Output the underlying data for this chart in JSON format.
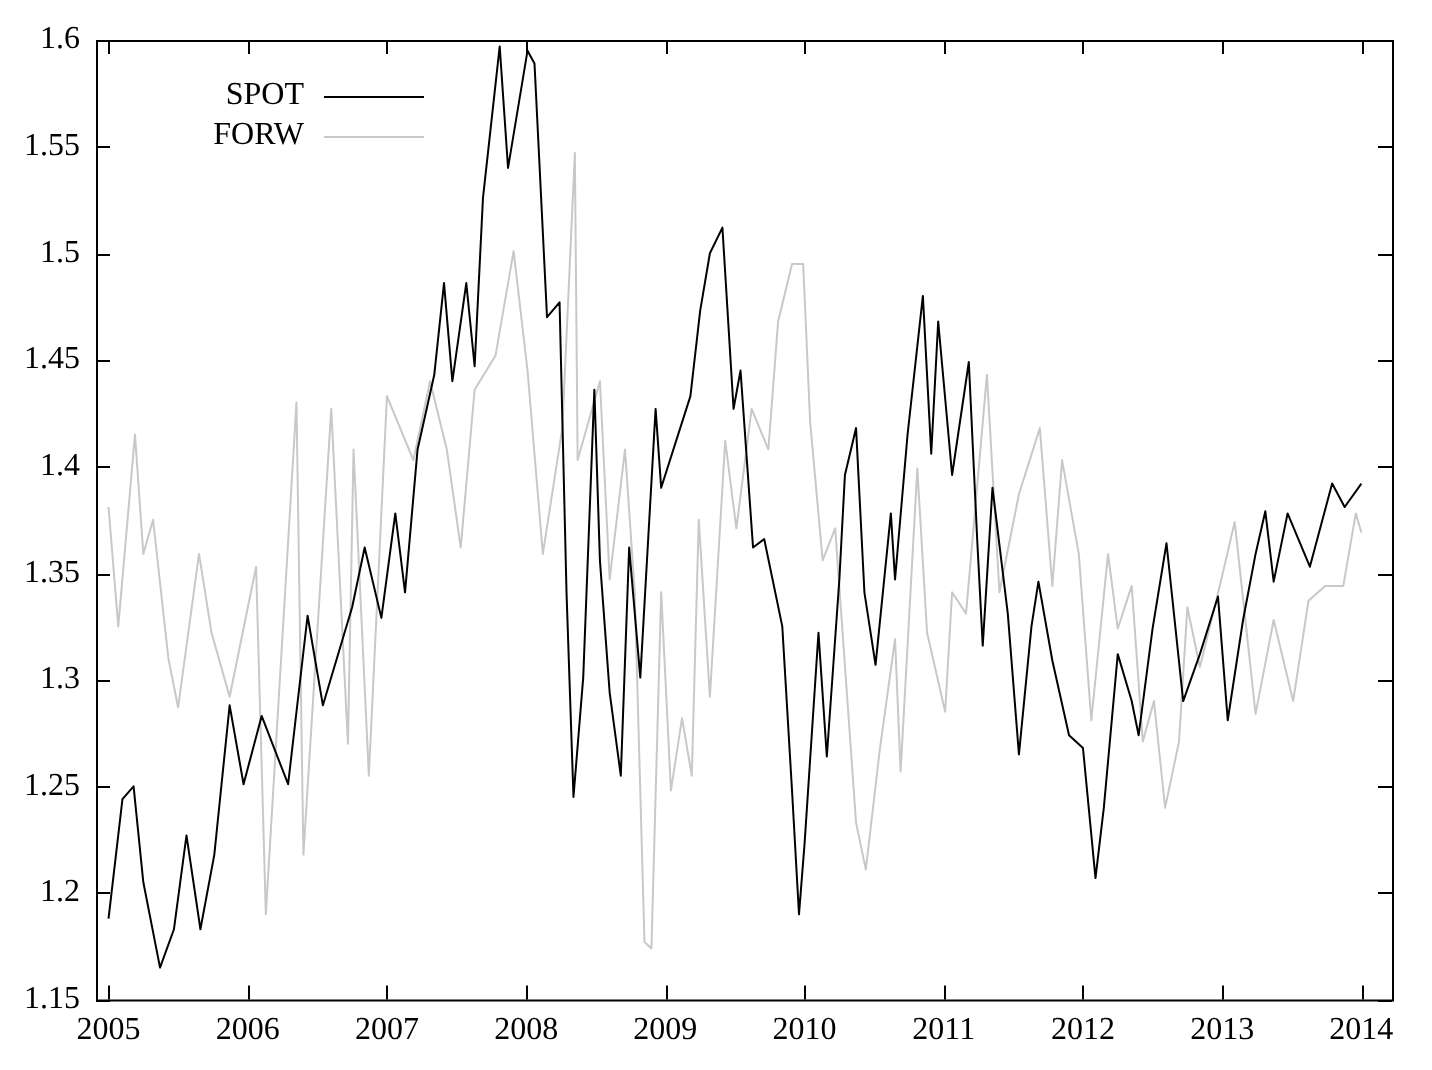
{
  "chart_data": {
    "type": "line",
    "xlim": [
      2004.91,
      2014.22
    ],
    "xticks": [
      2005,
      2006,
      2007,
      2008,
      2009,
      2010,
      2011,
      2012,
      2013,
      2014
    ],
    "ylim": [
      1.15,
      1.6
    ],
    "yticks": [
      1.15,
      1.2,
      1.25,
      1.3,
      1.35,
      1.4,
      1.45,
      1.5,
      1.55,
      1.6
    ],
    "legend": "top left",
    "marker": "none",
    "line_style": "solid",
    "series": [
      {
        "name": "SPOT",
        "color": "#000000",
        "x": [
          2005.0,
          2005.1,
          2005.18,
          2005.25,
          2005.37,
          2005.47,
          2005.56,
          2005.66,
          2005.76,
          2005.87,
          2005.97,
          2006.1,
          2006.29,
          2006.43,
          2006.54,
          2006.75,
          2006.84,
          2006.96,
          2007.06,
          2007.13,
          2007.22,
          2007.34,
          2007.41,
          2007.47,
          2007.57,
          2007.63,
          2007.69,
          2007.81,
          2007.87,
          2008.01,
          2008.06,
          2008.15,
          2008.24,
          2008.29,
          2008.34,
          2008.41,
          2008.49,
          2008.53,
          2008.6,
          2008.68,
          2008.74,
          2008.82,
          2008.93,
          2008.97,
          2009.18,
          2009.25,
          2009.32,
          2009.41,
          2009.49,
          2009.54,
          2009.63,
          2009.71,
          2009.84,
          2009.91,
          2009.96,
          2010.0,
          2010.1,
          2010.16,
          2010.25,
          2010.29,
          2010.37,
          2010.43,
          2010.51,
          2010.62,
          2010.65,
          2010.74,
          2010.85,
          2010.91,
          2010.96,
          2011.06,
          2011.18,
          2011.24,
          2011.28,
          2011.35,
          2011.46,
          2011.54,
          2011.63,
          2011.68,
          2011.78,
          2011.9,
          2012.0,
          2012.09,
          2012.15,
          2012.25,
          2012.35,
          2012.4,
          2012.5,
          2012.6,
          2012.72,
          2012.84,
          2012.97,
          2013.04,
          2013.15,
          2013.24,
          2013.31,
          2013.37,
          2013.47,
          2013.63,
          2013.79,
          2013.88,
          2014.0
        ],
        "values": [
          1.188,
          1.244,
          1.25,
          1.205,
          1.165,
          1.183,
          1.227,
          1.183,
          1.218,
          1.288,
          1.251,
          1.283,
          1.251,
          1.33,
          1.288,
          1.334,
          1.362,
          1.329,
          1.378,
          1.341,
          1.408,
          1.443,
          1.486,
          1.44,
          1.486,
          1.447,
          1.526,
          1.597,
          1.54,
          1.595,
          1.589,
          1.47,
          1.477,
          1.341,
          1.245,
          1.301,
          1.436,
          1.356,
          1.294,
          1.255,
          1.362,
          1.301,
          1.427,
          1.39,
          1.433,
          1.473,
          1.5,
          1.512,
          1.427,
          1.445,
          1.362,
          1.366,
          1.325,
          1.248,
          1.19,
          1.223,
          1.322,
          1.264,
          1.347,
          1.396,
          1.418,
          1.341,
          1.307,
          1.378,
          1.347,
          1.415,
          1.48,
          1.406,
          1.468,
          1.396,
          1.449,
          1.366,
          1.316,
          1.39,
          1.331,
          1.265,
          1.325,
          1.346,
          1.309,
          1.274,
          1.268,
          1.207,
          1.24,
          1.312,
          1.29,
          1.274,
          1.324,
          1.364,
          1.29,
          1.312,
          1.339,
          1.281,
          1.328,
          1.359,
          1.379,
          1.346,
          1.378,
          1.353,
          1.392,
          1.381,
          1.392
        ]
      },
      {
        "name": "FORW",
        "color": "#c8c8c8",
        "x": [
          2005.0,
          2005.07,
          2005.19,
          2005.25,
          2005.32,
          2005.43,
          2005.5,
          2005.65,
          2005.74,
          2005.87,
          2006.06,
          2006.13,
          2006.35,
          2006.4,
          2006.6,
          2006.72,
          2006.76,
          2006.87,
          2007.0,
          2007.19,
          2007.31,
          2007.43,
          2007.53,
          2007.63,
          2007.78,
          2007.91,
          2008.01,
          2008.12,
          2008.26,
          2008.35,
          2008.37,
          2008.53,
          2008.6,
          2008.71,
          2008.78,
          2008.85,
          2008.9,
          2008.97,
          2009.04,
          2009.12,
          2009.19,
          2009.24,
          2009.32,
          2009.43,
          2009.51,
          2009.62,
          2009.74,
          2009.81,
          2009.91,
          2009.99,
          2010.04,
          2010.13,
          2010.22,
          2010.37,
          2010.44,
          2010.54,
          2010.65,
          2010.69,
          2010.81,
          2010.88,
          2011.01,
          2011.06,
          2011.16,
          2011.31,
          2011.4,
          2011.54,
          2011.69,
          2011.78,
          2011.85,
          2011.97,
          2012.06,
          2012.18,
          2012.25,
          2012.35,
          2012.43,
          2012.51,
          2012.59,
          2012.69,
          2012.75,
          2012.84,
          2012.99,
          2013.09,
          2013.24,
          2013.37,
          2013.51,
          2013.62,
          2013.74,
          2013.87,
          2013.96,
          2014.0
        ],
        "values": [
          1.381,
          1.325,
          1.415,
          1.359,
          1.375,
          1.31,
          1.287,
          1.359,
          1.322,
          1.292,
          1.353,
          1.19,
          1.43,
          1.218,
          1.427,
          1.27,
          1.408,
          1.255,
          1.433,
          1.403,
          1.44,
          1.408,
          1.362,
          1.436,
          1.452,
          1.501,
          1.445,
          1.359,
          1.418,
          1.547,
          1.403,
          1.44,
          1.347,
          1.408,
          1.341,
          1.177,
          1.174,
          1.341,
          1.248,
          1.282,
          1.255,
          1.375,
          1.292,
          1.412,
          1.371,
          1.427,
          1.408,
          1.468,
          1.495,
          1.495,
          1.421,
          1.356,
          1.371,
          1.233,
          1.211,
          1.267,
          1.319,
          1.257,
          1.399,
          1.322,
          1.285,
          1.341,
          1.331,
          1.443,
          1.341,
          1.387,
          1.418,
          1.344,
          1.403,
          1.359,
          1.281,
          1.359,
          1.324,
          1.344,
          1.271,
          1.29,
          1.24,
          1.271,
          1.334,
          1.306,
          1.346,
          1.374,
          1.284,
          1.328,
          1.29,
          1.337,
          1.344,
          1.344,
          1.378,
          1.369
        ]
      }
    ]
  }
}
